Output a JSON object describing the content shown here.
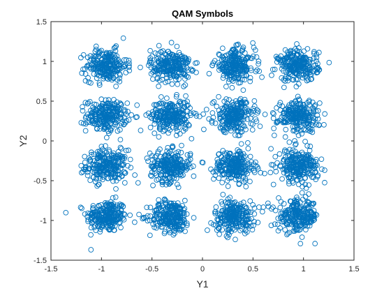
{
  "chart_data": {
    "type": "scatter",
    "title": "QAM Symbols",
    "xlabel": "Y1",
    "ylabel": "Y2",
    "xlim": [
      -1.5,
      1.5
    ],
    "ylim": [
      -1.5,
      1.5
    ],
    "xticks": [
      "-1.5",
      "-1",
      "-0.5",
      "0",
      "0.5",
      "1",
      "1.5"
    ],
    "yticks": [
      "-1.5",
      "-1",
      "-0.5",
      "0",
      "0.5",
      "1",
      "1.5"
    ],
    "grid": false,
    "legend": "none",
    "marker": "open-circle",
    "marker_color": "#0072BD",
    "series": [
      {
        "constellation_centers_x": [
          -0.949,
          -0.316,
          0.316,
          0.949
        ],
        "constellation_centers_y": [
          -0.949,
          -0.316,
          0.316,
          0.949
        ],
        "noise_std": 0.1,
        "points_per_cluster": 240
      }
    ]
  }
}
